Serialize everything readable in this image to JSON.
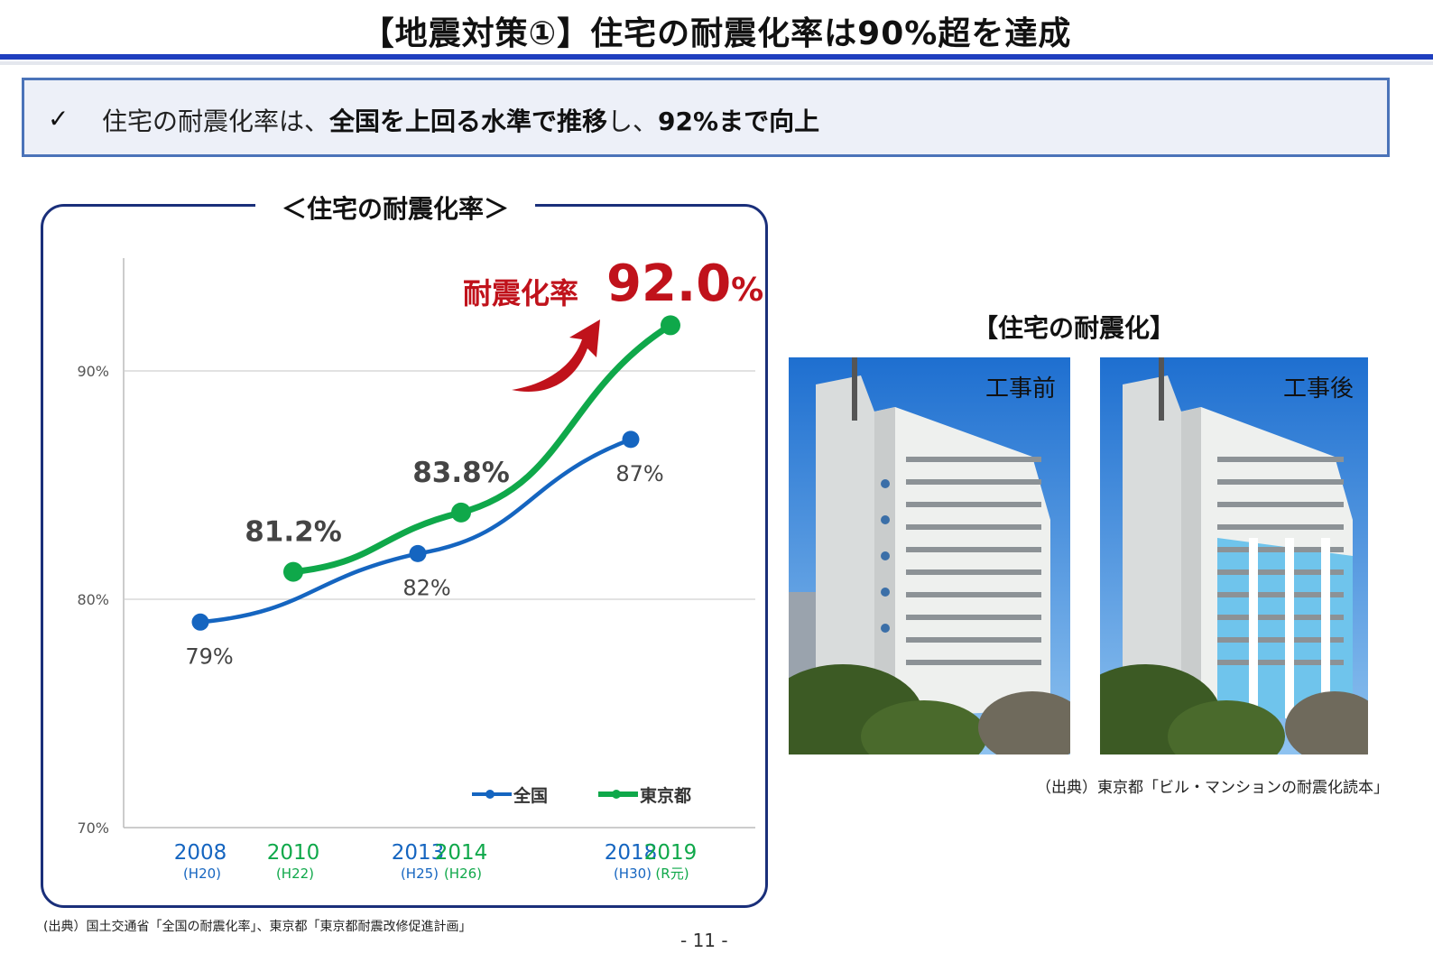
{
  "title": "【地震対策①】住宅の耐震化率は90%超を達成",
  "summary": {
    "check": "✓",
    "text_1": "住宅の耐震化率は、",
    "text_bold_1": "全国を上回る水準で推移",
    "text_2": "し、",
    "text_bold_2": "92%まで向上"
  },
  "chart_title": "＜住宅の耐震化率＞",
  "callout": {
    "label": "耐震化率",
    "value": "92.0",
    "unit": "%"
  },
  "chart_data": {
    "type": "line",
    "ylim": [
      70,
      95
    ],
    "yticks": [
      "70%",
      "80%",
      "90%"
    ],
    "grid": true,
    "legend_placement": "bottom-right",
    "series": [
      {
        "name": "全国",
        "color": "#1565c0",
        "x": [
          "2008",
          "2013",
          "2018"
        ],
        "values": [
          79,
          82,
          87
        ],
        "labels": [
          "79%",
          "82%",
          "87%"
        ]
      },
      {
        "name": "東京都",
        "color": "#0fa84a",
        "x": [
          "2010",
          "2014",
          "2019"
        ],
        "values": [
          81.2,
          83.8,
          92.0
        ],
        "labels": [
          "81.2%",
          "83.8%",
          ""
        ]
      }
    ],
    "x_ticks": [
      {
        "year": "2008",
        "era": "(H20)",
        "series": 0
      },
      {
        "year": "2010",
        "era": "(H22)",
        "series": 1
      },
      {
        "year": "2013",
        "era": "(H25)",
        "series": 0
      },
      {
        "year": "2014",
        "era": "(H26)",
        "series": 1
      },
      {
        "year": "2018",
        "era": "(H30)",
        "series": 0
      },
      {
        "year": "2019",
        "era": "(R元)",
        "series": 1
      }
    ],
    "accent_color": "#c0121b"
  },
  "photos": {
    "title": "【住宅の耐震化】",
    "before_caption": "工事前",
    "after_caption": "工事後",
    "source": "（出典）東京都「ビル・マンションの耐震化読本」"
  },
  "source_left": "(出典）国土交通省「全国の耐震化率」、東京都「東京都耐震改修促進計画」",
  "page_number": "- 11 -"
}
